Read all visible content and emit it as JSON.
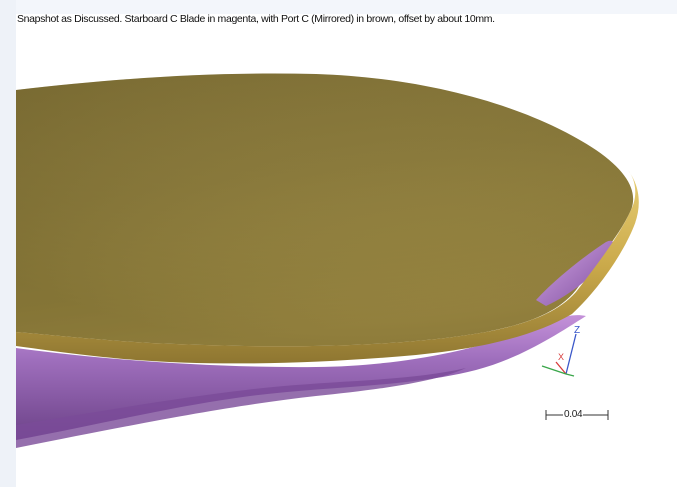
{
  "caption": "Snapshot as Discussed.  Starboard C Blade in magenta, with Port C (Mirrored) in brown, offset by about 10mm.",
  "scale": {
    "label": "0.04"
  },
  "axes": {
    "z_label": "Z",
    "x_label": "X"
  },
  "colors": {
    "port_blade_gold": "#8d7d3e",
    "starboard_blade_purple": "#9b6fb6",
    "axis_x": "#d73b3b",
    "axis_y": "#3aa64a",
    "axis_z": "#3a57c9"
  }
}
